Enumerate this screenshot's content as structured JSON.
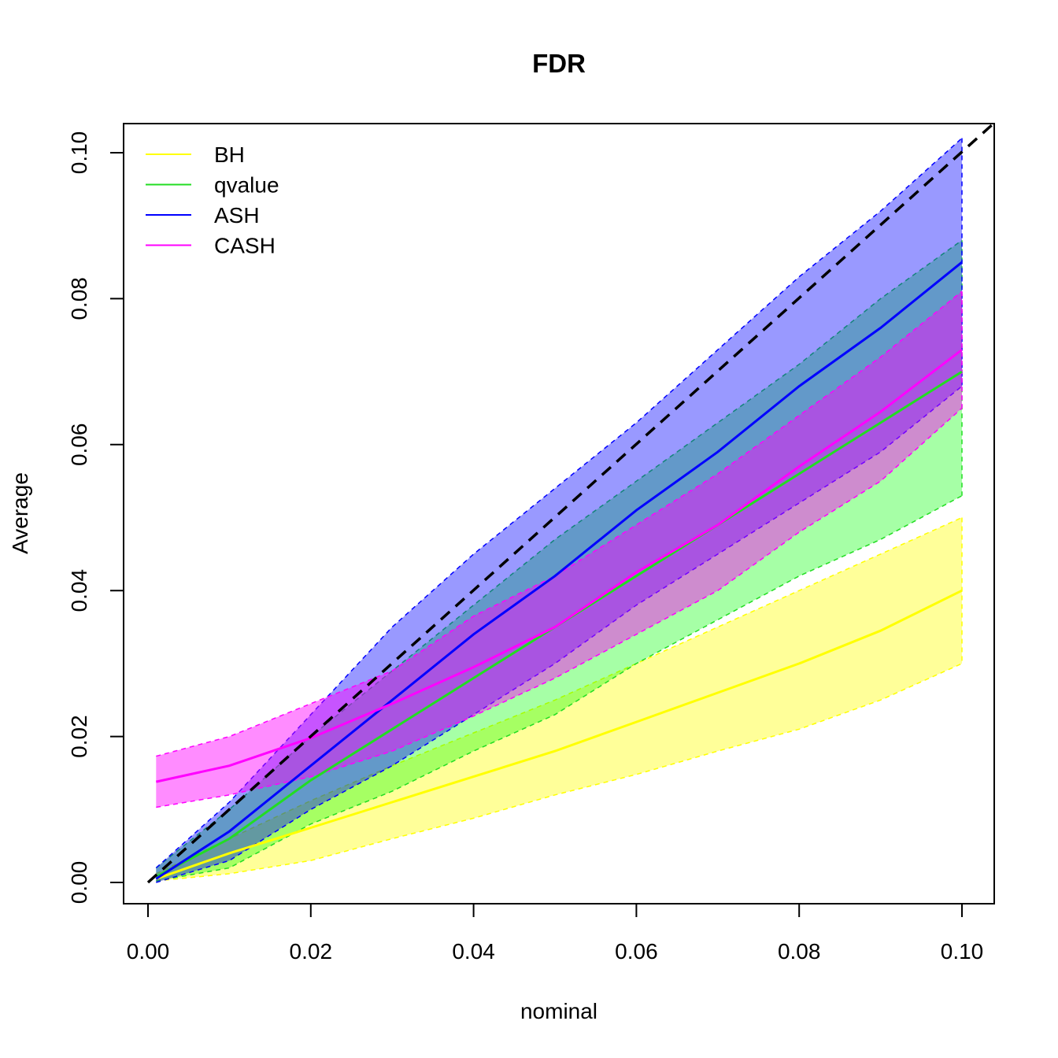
{
  "chart_data": {
    "type": "line",
    "title": "FDR",
    "xlabel": "nominal",
    "ylabel": "Average",
    "xlim": [
      0.0,
      0.1
    ],
    "ylim": [
      0.0,
      0.1
    ],
    "x_ticks": [
      "0.00",
      "0.02",
      "0.04",
      "0.06",
      "0.08",
      "0.10"
    ],
    "y_ticks": [
      "0.00",
      "0.02",
      "0.04",
      "0.06",
      "0.08",
      "0.10"
    ],
    "grid": false,
    "legend_position": "top-left",
    "reference_line": {
      "style": "dashed",
      "color": "#000000",
      "from": [
        0.0,
        0.0
      ],
      "to": [
        0.1,
        0.1
      ]
    },
    "series": [
      {
        "name": "BH",
        "color": "#ffff00",
        "fill": "rgba(255,255,0,0.40)",
        "x": [
          0.001,
          0.01,
          0.02,
          0.03,
          0.04,
          0.05,
          0.06,
          0.07,
          0.08,
          0.09,
          0.1
        ],
        "mean": [
          0.0005,
          0.004,
          0.0075,
          0.011,
          0.0145,
          0.018,
          0.022,
          0.026,
          0.03,
          0.0345,
          0.04
        ],
        "lower": [
          0.0002,
          0.0012,
          0.003,
          0.006,
          0.0088,
          0.012,
          0.0148,
          0.018,
          0.021,
          0.025,
          0.03
        ],
        "upper": [
          0.0012,
          0.006,
          0.0112,
          0.016,
          0.0205,
          0.025,
          0.03,
          0.035,
          0.04,
          0.045,
          0.05
        ]
      },
      {
        "name": "qvalue",
        "color": "#22dd22",
        "fill": "rgba(0,255,0,0.35)",
        "x": [
          0.001,
          0.01,
          0.02,
          0.03,
          0.04,
          0.05,
          0.06,
          0.07,
          0.08,
          0.09,
          0.1
        ],
        "mean": [
          0.0008,
          0.006,
          0.014,
          0.021,
          0.028,
          0.035,
          0.042,
          0.049,
          0.056,
          0.063,
          0.07
        ],
        "lower": [
          0.0002,
          0.002,
          0.008,
          0.0125,
          0.018,
          0.023,
          0.03,
          0.036,
          0.042,
          0.047,
          0.053
        ],
        "upper": [
          0.002,
          0.01,
          0.02,
          0.029,
          0.038,
          0.047,
          0.055,
          0.063,
          0.071,
          0.08,
          0.088
        ]
      },
      {
        "name": "ASH",
        "color": "#0000ff",
        "fill": "rgba(0,0,255,0.40)",
        "x": [
          0.001,
          0.01,
          0.02,
          0.03,
          0.04,
          0.05,
          0.06,
          0.07,
          0.08,
          0.09,
          0.1
        ],
        "mean": [
          0.0005,
          0.007,
          0.016,
          0.025,
          0.034,
          0.042,
          0.051,
          0.059,
          0.068,
          0.076,
          0.085
        ],
        "lower": [
          0.0,
          0.003,
          0.01,
          0.016,
          0.023,
          0.03,
          0.038,
          0.045,
          0.052,
          0.059,
          0.068
        ],
        "upper": [
          0.002,
          0.011,
          0.023,
          0.035,
          0.045,
          0.054,
          0.063,
          0.073,
          0.083,
          0.092,
          0.102
        ]
      },
      {
        "name": "CASH",
        "color": "#ff00ff",
        "fill": "rgba(255,0,255,0.45)",
        "x": [
          0.001,
          0.01,
          0.02,
          0.03,
          0.04,
          0.05,
          0.06,
          0.07,
          0.08,
          0.09,
          0.1
        ],
        "mean": [
          0.0138,
          0.016,
          0.0198,
          0.0245,
          0.0295,
          0.035,
          0.0425,
          0.049,
          0.057,
          0.0645,
          0.073
        ],
        "lower": [
          0.0103,
          0.012,
          0.0145,
          0.018,
          0.0228,
          0.028,
          0.034,
          0.04,
          0.048,
          0.055,
          0.065
        ],
        "upper": [
          0.0173,
          0.02,
          0.0245,
          0.029,
          0.0365,
          0.042,
          0.049,
          0.056,
          0.064,
          0.072,
          0.081
        ]
      }
    ]
  }
}
